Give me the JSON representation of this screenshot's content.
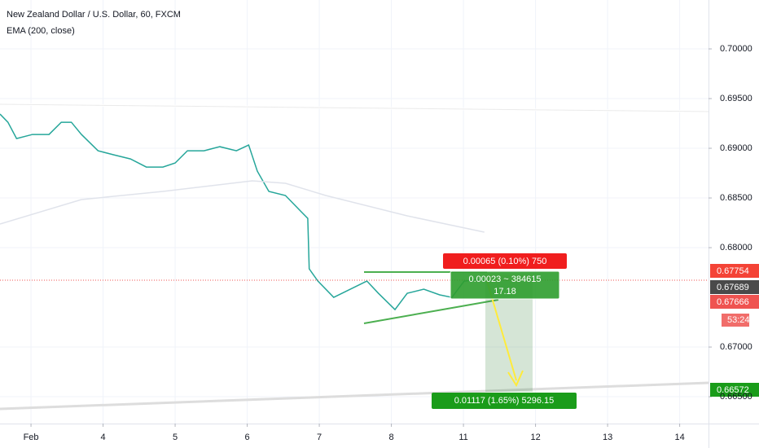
{
  "chart_data": {
    "type": "line",
    "title": "New Zealand Dollar / U.S. Dollar, 60, FXCM",
    "series": [
      {
        "color": "#26a69a",
        "x": [
          -0.43,
          -0.32,
          -0.2,
          0.02,
          0.25,
          0.42,
          0.56,
          0.7,
          0.93,
          1.15,
          1.38,
          1.6,
          1.83,
          2.0,
          2.17,
          2.4,
          2.62,
          2.85,
          3.02,
          3.14,
          3.3,
          3.53,
          3.75,
          3.84,
          3.86,
          3.98,
          4.2,
          4.43,
          4.66,
          4.82,
          5.05,
          5.22,
          5.45,
          5.67,
          5.84,
          6.01,
          6.24,
          6.35
        ],
        "values": [
          0.69344,
          0.69262,
          0.69098,
          0.69139,
          0.69139,
          0.69262,
          0.69262,
          0.69139,
          0.68975,
          0.68934,
          0.68893,
          0.68811,
          0.68811,
          0.68852,
          0.68975,
          0.68975,
          0.69016,
          0.68975,
          0.69033,
          0.6877,
          0.68566,
          0.68525,
          0.68361,
          0.68295,
          0.67787,
          0.67664,
          0.675,
          0.67582,
          0.67664,
          0.67541,
          0.67377,
          0.67541,
          0.67582,
          0.67525,
          0.675,
          0.67664,
          0.6768,
          0.67664
        ]
      },
      {
        "name": "EMA (200, close)",
        "color": "#e0e3eb",
        "x": [
          -0.43,
          0.7,
          1.83,
          3.07,
          3.53,
          4.09,
          5.22,
          6.29
        ],
        "values": [
          0.68238,
          0.68484,
          0.68566,
          0.68672,
          0.68648,
          0.68525,
          0.6832,
          0.68156
        ]
      }
    ],
    "xlim": [
      -0.43,
      9.4
    ],
    "xticks": [
      {
        "value": 0,
        "label": "Feb"
      },
      {
        "value": 1,
        "label": "4"
      },
      {
        "value": 2,
        "label": "5"
      },
      {
        "value": 3,
        "label": "6"
      },
      {
        "value": 4,
        "label": "7"
      },
      {
        "value": 5,
        "label": "8"
      },
      {
        "value": 6,
        "label": "11"
      },
      {
        "value": 7,
        "label": "12"
      },
      {
        "value": 8,
        "label": "13"
      },
      {
        "value": 9,
        "label": "14"
      }
    ],
    "ylim": [
      0.6623,
      0.70492
    ],
    "yticks": [
      {
        "value": 0.7,
        "label": "0.70000"
      },
      {
        "value": 0.695,
        "label": "0.69500"
      },
      {
        "value": 0.69,
        "label": "0.69000"
      },
      {
        "value": 0.685,
        "label": "0.68500"
      },
      {
        "value": 0.68,
        "label": "0.68000"
      },
      {
        "value": 0.67,
        "label": "0.67000"
      },
      {
        "value": 0.665,
        "label": "0.66500"
      }
    ],
    "price_tags": [
      "0.67754",
      "0.67689",
      "0.67666",
      "53:24",
      "0.66572"
    ],
    "annotations": [
      "0.00065 (0.10%) 750",
      "0.00023 ~ 384615",
      "17.18",
      "0.01117 (1.65%) 5296.15"
    ]
  }
}
